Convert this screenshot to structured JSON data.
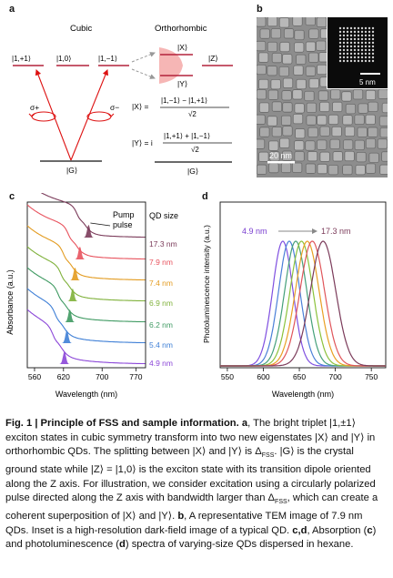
{
  "panel_a": {
    "letter": "a",
    "cubic_label": "Cubic",
    "ortho_label": "Orthorhombic",
    "states": [
      "|1,+1⟩",
      "|1,0⟩",
      "|1,−1⟩"
    ],
    "x_state": "|X⟩",
    "y_state": "|Y⟩",
    "z_state": "|Z⟩",
    "ground": "|G⟩",
    "ground_right": "|G⟩",
    "sigma_plus": "σ+",
    "sigma_minus": "σ−",
    "eq_x_lhs": "|X⟩ =",
    "eq_x_num": "|1,−1⟩ − |1,+1⟩",
    "eq_x_den": "√2",
    "eq_y_lhs": "|Y⟩ = i",
    "eq_y_num": "|1,+1⟩ + |1,−1⟩",
    "eq_y_den": "√2"
  },
  "panel_b": {
    "letter": "b",
    "inset_scale": "5 nm",
    "main_scale": "20 nm"
  },
  "panel_c": {
    "letter": "c",
    "pump_label_1": "Pump",
    "pump_label_2": "pulse",
    "qd_size_label": "QD size",
    "sizes": [
      {
        "label": "17.3 nm",
        "color": "#7b3b5a"
      },
      {
        "label": "7.9 nm",
        "color": "#e8535e"
      },
      {
        "label": "7.4 nm",
        "color": "#e39b1f"
      },
      {
        "label": "6.9 nm",
        "color": "#7fb13a"
      },
      {
        "label": "6.2 nm",
        "color": "#3f9a62"
      },
      {
        "label": "5.4 nm",
        "color": "#3e7fd6"
      },
      {
        "label": "4.9 nm",
        "color": "#8b46d8"
      }
    ],
    "xlabel": "Wavelength (nm)",
    "ylabel": "Absorbance (a.u.)",
    "xticks": [
      "560",
      "620",
      "700",
      "770"
    ]
  },
  "panel_d": {
    "letter": "d",
    "ylabel": "Photoluminescence intensity (a.u.)",
    "xlabel": "Wavelength (nm)",
    "left_label": "4.9 nm",
    "right_label": "17.3 nm",
    "xticks": [
      "550",
      "600",
      "650",
      "700",
      "750"
    ]
  },
  "chart_data": [
    {
      "type": "line",
      "xlabel": "Wavelength (nm)",
      "ylabel": "Absorbance (a.u.)",
      "xlim": [
        545,
        790
      ],
      "series": [
        {
          "name": "4.9 nm",
          "pump_peak_nm": 622
        },
        {
          "name": "5.4 nm",
          "pump_peak_nm": 627
        },
        {
          "name": "6.2 nm",
          "pump_peak_nm": 633
        },
        {
          "name": "6.9 nm",
          "pump_peak_nm": 639
        },
        {
          "name": "7.4 nm",
          "pump_peak_nm": 644
        },
        {
          "name": "7.9 nm",
          "pump_peak_nm": 654
        },
        {
          "name": "17.3 nm",
          "pump_peak_nm": 672
        }
      ]
    },
    {
      "type": "line",
      "xlabel": "Wavelength (nm)",
      "ylabel": "Photoluminescence intensity (a.u.)",
      "xlim": [
        540,
        770
      ],
      "series": [
        {
          "name": "4.9 nm",
          "peak_nm": 627
        },
        {
          "name": "5.4 nm",
          "peak_nm": 636
        },
        {
          "name": "6.2 nm",
          "peak_nm": 645
        },
        {
          "name": "6.9 nm",
          "peak_nm": 653
        },
        {
          "name": "7.4 nm",
          "peak_nm": 661
        },
        {
          "name": "7.9 nm",
          "peak_nm": 668
        },
        {
          "name": "17.3 nm",
          "peak_nm": 683
        }
      ]
    }
  ],
  "caption": {
    "title": "Fig. 1 | Principle of FSS and sample information.",
    "a_letter": "a",
    "text_a": ", The bright triplet |1,±1⟩ exciton states in cubic symmetry transform into two new eigenstates |X⟩ and |Y⟩ in orthorhombic QDs. The splitting between |X⟩ and |Y⟩ is Δ",
    "sub_fss": "FSS",
    "text_a2": ". |G⟩ is the crystal ground state while |Z⟩ = |1,0⟩ is the exciton state with its transition dipole oriented along the Z axis. For illustration, we consider excitation using a circularly polarized pulse directed along the Z axis with bandwidth larger than Δ",
    "sub_fss2": "FSS",
    "text_a3": ", which can create a coherent superposition of |X⟩ and |Y⟩.",
    "b_letter": "b",
    "text_b": ", A representative TEM image of 7.9 nm QDs. Inset is a high-resolution dark-field image of a typical QD.",
    "cd_letter": "c,d",
    "text_cd": ", Absorption (",
    "c_letter": "c",
    "text_cd2": ") and photoluminescence (",
    "d_letter": "d",
    "text_cd3": ") spectra of varying-size QDs dispersed in hexane."
  }
}
